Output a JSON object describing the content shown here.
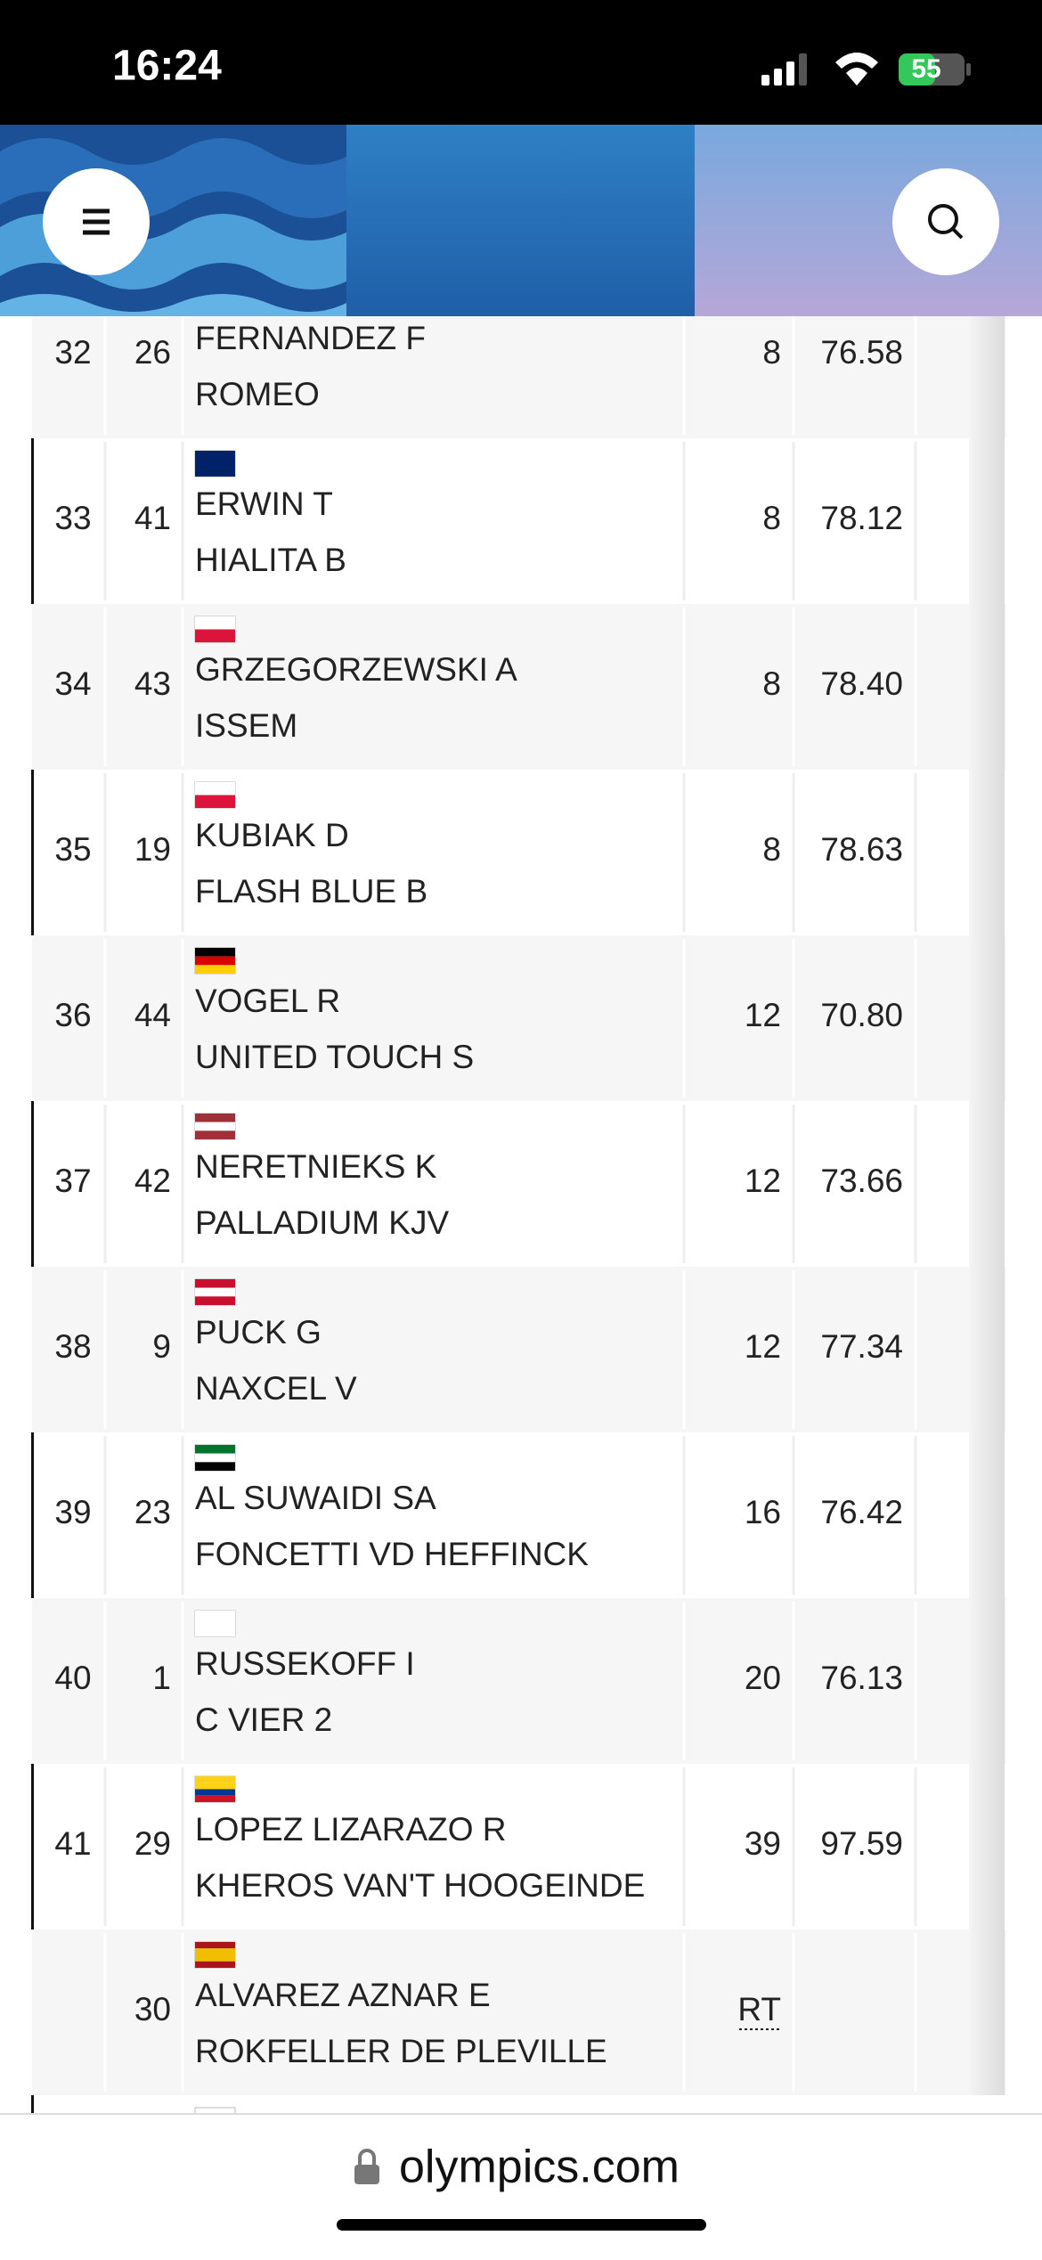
{
  "status_bar": {
    "time": "16:24",
    "battery": "55"
  },
  "table": {
    "rows": [
      {
        "rank": "32",
        "bib": "26",
        "rider": "FERNANDEZ F",
        "horse": "ROMEO",
        "penalties": "8",
        "time": "76.58"
      },
      {
        "rank": "33",
        "bib": "41",
        "rider": "ERWIN T",
        "horse": "HIALITA B",
        "penalties": "8",
        "time": "78.12"
      },
      {
        "rank": "34",
        "bib": "43",
        "rider": "GRZEGORZEWSKI A",
        "horse": "ISSEM",
        "penalties": "8",
        "time": "78.40"
      },
      {
        "rank": "35",
        "bib": "19",
        "rider": "KUBIAK D",
        "horse": "FLASH BLUE B",
        "penalties": "8",
        "time": "78.63"
      },
      {
        "rank": "36",
        "bib": "44",
        "rider": "VOGEL R",
        "horse": "UNITED TOUCH S",
        "penalties": "12",
        "time": "70.80"
      },
      {
        "rank": "37",
        "bib": "42",
        "rider": "NERETNIEKS K",
        "horse": "PALLADIUM KJV",
        "penalties": "12",
        "time": "73.66"
      },
      {
        "rank": "38",
        "bib": "9",
        "rider": "PUCK G",
        "horse": "NAXCEL V",
        "penalties": "12",
        "time": "77.34"
      },
      {
        "rank": "39",
        "bib": "23",
        "rider": "AL SUWAIDI SA",
        "horse": "FONCETTI VD HEFFINCK",
        "penalties": "16",
        "time": "76.42"
      },
      {
        "rank": "40",
        "bib": "1",
        "rider": "RUSSEKOFF I",
        "horse": "C VIER 2",
        "penalties": "20",
        "time": "76.13"
      },
      {
        "rank": "41",
        "bib": "29",
        "rider": "LOPEZ LIZARAZO R",
        "horse": "KHEROS VAN'T HOOGEINDE",
        "penalties": "39",
        "time": "97.59"
      },
      {
        "rank": null,
        "bib": "30",
        "rider": "ALVAREZ AZNAR E",
        "horse": "ROKFELLER DE PLEVILLE",
        "penalties": "RT",
        "time": null
      }
    ]
  },
  "address_bar": {
    "url": "olympics.com"
  }
}
